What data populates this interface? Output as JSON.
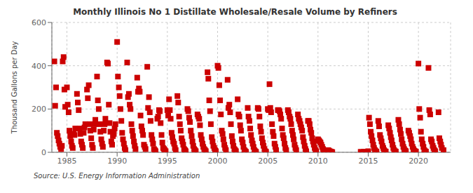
{
  "chart_data": {
    "type": "scatter",
    "title": "Monthly Illinois No 1 Distillate Wholesale/Resale Volume by Refiners",
    "ylabel": "Thousand Gallons per Day",
    "annotations": [
      "Source: U.S. Energy Information Administration"
    ],
    "color": "#CC0000",
    "marker": "square",
    "grid": true,
    "xlim": [
      1983.5,
      2023.2
    ],
    "xticks": [
      1985,
      1990,
      1995,
      2000,
      2005,
      2010,
      2015,
      2020
    ],
    "ylim": [
      0,
      600
    ],
    "yticks": [
      0,
      200,
      400,
      600
    ],
    "x": [
      1983.75,
      1983.83,
      1983.92,
      1984,
      1984.08,
      1984.17,
      1984.25,
      1984.33,
      1984.42,
      1984.5,
      1984.58,
      1984.67,
      1984.75,
      1984.83,
      1985,
      1985.08,
      1985.17,
      1985.25,
      1985.33,
      1985.42,
      1985.5,
      1985.58,
      1985.67,
      1985.75,
      1985.83,
      1986,
      1986.08,
      1986.17,
      1986.25,
      1986.33,
      1986.42,
      1986.5,
      1986.58,
      1986.67,
      1986.75,
      1986.83,
      1987,
      1987.08,
      1987.17,
      1987.25,
      1987.33,
      1987.42,
      1987.5,
      1987.58,
      1987.67,
      1987.75,
      1987.83,
      1988,
      1988.08,
      1988.17,
      1988.25,
      1988.33,
      1988.42,
      1988.5,
      1988.58,
      1988.67,
      1988.75,
      1988.83,
      1989,
      1989.08,
      1989.17,
      1989.25,
      1989.33,
      1989.42,
      1989.5,
      1989.58,
      1989.67,
      1989.75,
      1989.83,
      1990,
      1990.08,
      1990.17,
      1990.25,
      1990.33,
      1990.42,
      1990.5,
      1990.58,
      1990.67,
      1990.75,
      1990.83,
      1991,
      1991.08,
      1991.17,
      1991.25,
      1991.33,
      1991.42,
      1991.5,
      1991.58,
      1991.67,
      1991.75,
      1991.83,
      1992,
      1992.08,
      1992.17,
      1992.25,
      1992.33,
      1992.42,
      1992.5,
      1992.58,
      1992.67,
      1992.75,
      1992.83,
      1993,
      1993.08,
      1993.17,
      1993.25,
      1993.33,
      1993.42,
      1993.5,
      1993.58,
      1993.67,
      1993.75,
      1993.83,
      1994,
      1994.08,
      1994.17,
      1994.25,
      1994.33,
      1994.42,
      1994.5,
      1994.58,
      1994.67,
      1994.75,
      1994.83,
      1995,
      1995.08,
      1995.17,
      1995.25,
      1995.33,
      1995.42,
      1995.5,
      1995.58,
      1995.67,
      1995.75,
      1995.83,
      1996,
      1996.08,
      1996.17,
      1996.25,
      1996.33,
      1996.42,
      1996.5,
      1996.58,
      1996.67,
      1996.75,
      1996.83,
      1997,
      1997.08,
      1997.17,
      1997.25,
      1997.33,
      1997.42,
      1997.5,
      1997.58,
      1997.67,
      1997.75,
      1997.83,
      1998,
      1998.08,
      1998.17,
      1998.25,
      1998.33,
      1998.42,
      1998.5,
      1998.58,
      1998.67,
      1998.75,
      1998.83,
      1999,
      1999.08,
      1999.17,
      1999.25,
      1999.33,
      1999.42,
      1999.5,
      1999.58,
      1999.67,
      1999.75,
      1999.83,
      2000,
      2000.08,
      2000.17,
      2000.25,
      2000.33,
      2000.42,
      2000.5,
      2000.58,
      2000.67,
      2000.75,
      2000.83,
      2001,
      2001.08,
      2001.17,
      2001.25,
      2001.33,
      2001.42,
      2001.5,
      2001.58,
      2001.67,
      2001.75,
      2001.83,
      2002,
      2002.08,
      2002.17,
      2002.25,
      2002.33,
      2002.42,
      2002.5,
      2002.58,
      2002.67,
      2002.75,
      2002.83,
      2003,
      2003.08,
      2003.17,
      2003.25,
      2003.33,
      2003.42,
      2003.5,
      2003.58,
      2003.67,
      2003.75,
      2003.83,
      2004,
      2004.08,
      2004.17,
      2004.25,
      2004.33,
      2004.42,
      2004.5,
      2004.58,
      2004.67,
      2004.75,
      2004.83,
      2005,
      2005.08,
      2005.17,
      2005.25,
      2005.33,
      2005.42,
      2005.5,
      2005.58,
      2005.67,
      2005.75,
      2005.83,
      2006,
      2006.08,
      2006.17,
      2006.25,
      2006.33,
      2006.42,
      2006.5,
      2006.58,
      2006.67,
      2006.75,
      2006.83,
      2007,
      2007.08,
      2007.17,
      2007.25,
      2007.33,
      2007.42,
      2007.5,
      2007.58,
      2007.67,
      2007.75,
      2007.83,
      2008,
      2008.08,
      2008.17,
      2008.25,
      2008.33,
      2008.42,
      2008.5,
      2008.58,
      2008.67,
      2008.75,
      2008.83,
      2009,
      2009.08,
      2009.17,
      2009.25,
      2009.33,
      2009.42,
      2009.5,
      2009.58,
      2009.67,
      2009.75,
      2009.83,
      2010,
      2010.08,
      2010.17,
      2010.25,
      2010.33,
      2010.42,
      2010.5,
      2010.58,
      2010.67,
      2010.75,
      2010.83,
      2011,
      2011.08,
      2011.17,
      2011.25,
      2011.33,
      2011.42,
      2014.25,
      2014.33,
      2014.58,
      2015,
      2015.08,
      2015.17,
      2015.25,
      2015.33,
      2015.42,
      2015.5,
      2015.58,
      2015.67,
      2015.75,
      2015.83,
      2016,
      2016.08,
      2016.17,
      2016.25,
      2016.33,
      2016.42,
      2016.5,
      2016.58,
      2016.67,
      2016.75,
      2017,
      2017.08,
      2017.17,
      2017.25,
      2017.33,
      2017.42,
      2017.5,
      2017.58,
      2017.67,
      2017.75,
      2018,
      2018.08,
      2018.17,
      2018.25,
      2018.33,
      2018.42,
      2018.5,
      2018.58,
      2018.67,
      2018.75,
      2019,
      2019.08,
      2019.17,
      2019.25,
      2019.33,
      2019.42,
      2019.5,
      2019.58,
      2019.67,
      2019.75,
      2020,
      2020.08,
      2020.17,
      2020.25,
      2020.33,
      2020.42,
      2020.5,
      2020.58,
      2020.67,
      2020.75,
      2021,
      2021.08,
      2021.17,
      2021.25,
      2021.33,
      2021.42,
      2021.5,
      2021.58,
      2021.67,
      2022,
      2022.08,
      2022.17,
      2022.25,
      2022.33,
      2022.5
    ],
    "values": [
      420,
      215,
      300,
      90,
      75,
      55,
      40,
      25,
      15,
      30,
      420,
      440,
      290,
      210,
      300,
      220,
      185,
      100,
      75,
      50,
      30,
      20,
      85,
      80,
      110,
      270,
      230,
      195,
      110,
      85,
      50,
      35,
      20,
      90,
      115,
      130,
      290,
      250,
      310,
      130,
      100,
      65,
      35,
      20,
      105,
      130,
      150,
      350,
      240,
      200,
      130,
      95,
      60,
      40,
      25,
      100,
      130,
      155,
      415,
      410,
      220,
      135,
      95,
      50,
      35,
      75,
      85,
      110,
      130,
      510,
      350,
      300,
      260,
      200,
      145,
      90,
      60,
      40,
      20,
      10,
      415,
      255,
      270,
      220,
      200,
      130,
      100,
      75,
      50,
      30,
      15,
      345,
      280,
      295,
      280,
      170,
      120,
      100,
      80,
      35,
      25,
      15,
      395,
      205,
      255,
      185,
      145,
      80,
      60,
      40,
      15,
      10,
      5,
      155,
      165,
      195,
      190,
      135,
      80,
      45,
      20,
      15,
      10,
      5,
      195,
      170,
      245,
      195,
      155,
      90,
      70,
      50,
      40,
      20,
      10,
      260,
      230,
      165,
      130,
      100,
      65,
      50,
      35,
      15,
      10,
      5,
      200,
      190,
      160,
      140,
      100,
      75,
      50,
      30,
      15,
      10,
      5,
      175,
      165,
      155,
      125,
      80,
      60,
      40,
      25,
      15,
      10,
      5,
      370,
      340,
      240,
      190,
      130,
      70,
      50,
      30,
      20,
      10,
      5,
      400,
      390,
      310,
      240,
      175,
      100,
      85,
      60,
      35,
      20,
      10,
      335,
      205,
      220,
      185,
      130,
      75,
      50,
      30,
      15,
      10,
      5,
      245,
      175,
      165,
      125,
      100,
      60,
      45,
      25,
      10,
      5,
      2,
      205,
      165,
      145,
      110,
      80,
      55,
      40,
      25,
      10,
      5,
      2,
      205,
      200,
      165,
      120,
      95,
      65,
      45,
      30,
      15,
      5,
      2,
      200,
      195,
      315,
      205,
      185,
      130,
      95,
      75,
      40,
      25,
      10,
      195,
      195,
      190,
      175,
      155,
      110,
      80,
      65,
      40,
      20,
      10,
      195,
      185,
      165,
      155,
      130,
      100,
      80,
      60,
      35,
      20,
      10,
      175,
      155,
      145,
      130,
      115,
      100,
      70,
      50,
      30,
      15,
      5,
      145,
      145,
      130,
      105,
      90,
      65,
      50,
      35,
      20,
      10,
      5,
      60,
      55,
      50,
      45,
      35,
      25,
      15,
      10,
      5,
      3,
      2,
      10,
      8,
      5,
      3,
      2,
      1,
      2,
      1,
      3,
      5,
      160,
      130,
      95,
      75,
      55,
      35,
      20,
      10,
      5,
      3,
      145,
      120,
      80,
      65,
      50,
      30,
      20,
      10,
      5,
      3,
      125,
      110,
      90,
      70,
      55,
      35,
      20,
      10,
      5,
      3,
      150,
      130,
      105,
      85,
      60,
      40,
      25,
      15,
      8,
      5,
      100,
      90,
      75,
      60,
      40,
      25,
      15,
      8,
      5,
      3,
      410,
      200,
      160,
      95,
      60,
      40,
      25,
      10,
      5,
      3,
      390,
      195,
      175,
      60,
      50,
      30,
      20,
      10,
      5,
      185,
      65,
      50,
      35,
      20,
      10
    ]
  }
}
